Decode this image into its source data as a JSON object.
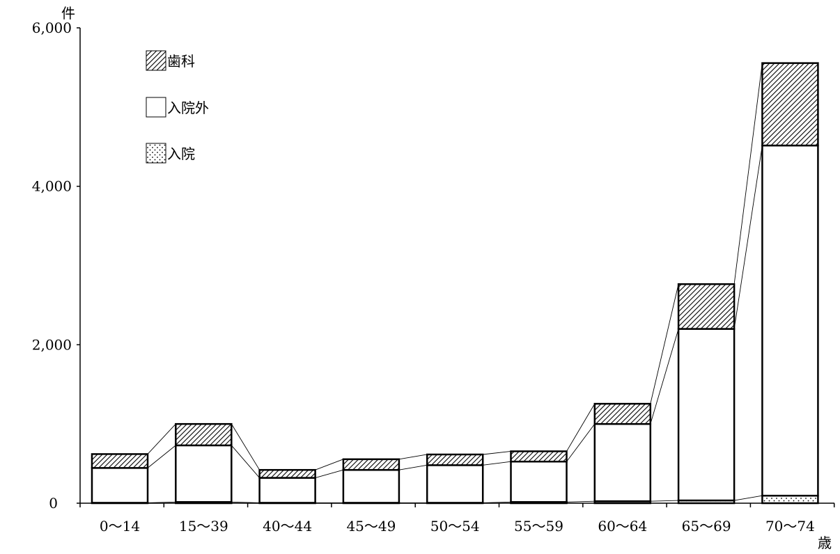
{
  "chart_data": {
    "type": "bar",
    "stacked": true,
    "categories": [
      "0～14",
      "15～39",
      "40～44",
      "45～49",
      "50～54",
      "55～59",
      "60～64",
      "65～69",
      "70～74"
    ],
    "series": [
      {
        "name": "入院",
        "values": [
          5,
          15,
          5,
          5,
          5,
          15,
          25,
          35,
          95
        ]
      },
      {
        "name": "入院外",
        "values": [
          440,
          715,
          315,
          415,
          475,
          510,
          975,
          2165,
          4420
        ]
      },
      {
        "name": "歯科",
        "values": [
          175,
          270,
          100,
          135,
          135,
          130,
          255,
          565,
          1040
        ]
      }
    ],
    "ylim": [
      0,
      6000
    ],
    "yticks": [
      "0",
      "2,000",
      "4,000",
      "6,000"
    ],
    "ytick_values": [
      0,
      2000,
      4000,
      6000
    ],
    "ylabel": "件",
    "xlabel": "歳",
    "legend_placement": "top-left",
    "connector_lines": true,
    "grid": false
  }
}
